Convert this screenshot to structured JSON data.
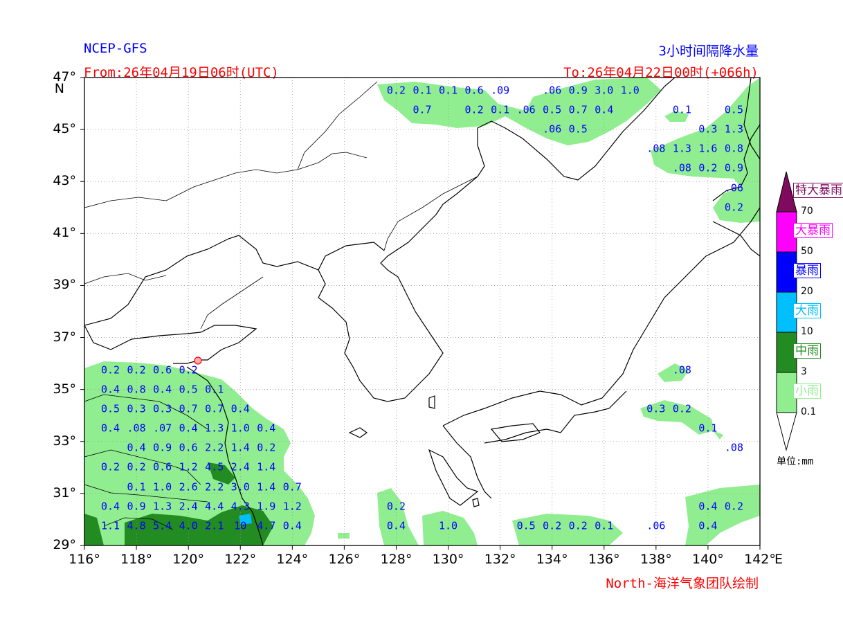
{
  "header": {
    "model": "NCEP-GFS",
    "title": "3小时间隔降水量",
    "from": "From:26年04月19日06时(UTC)",
    "to": "To:26年04月22日00时(+066h)",
    "credit": "North-海洋气象团队绘制"
  },
  "axes": {
    "lat_ticks": [
      "47°",
      "45°",
      "43°",
      "41°",
      "39°",
      "37°",
      "35°",
      "33°",
      "31°",
      "29°"
    ],
    "lat_unit": "N",
    "lon_ticks": [
      "116°",
      "118°",
      "120°",
      "122°",
      "124°",
      "126°",
      "128°",
      "130°",
      "132°",
      "134°",
      "136°",
      "138°",
      "140°",
      "142°"
    ],
    "lon_unit": "E"
  },
  "legend": {
    "categories": [
      {
        "label": "特大暴雨",
        "color": "#7f0a5e",
        "text_color": "#7f0a5e"
      },
      {
        "label": "大暴雨",
        "color": "#ff00ff",
        "text_color": "#ff00ff"
      },
      {
        "label": "暴雨",
        "color": "#0000ff",
        "text_color": "#0000ff"
      },
      {
        "label": "大雨",
        "color": "#00bfff",
        "text_color": "#00bfff"
      },
      {
        "label": "中雨",
        "color": "#228b22",
        "text_color": "#228b22"
      },
      {
        "label": "小雨",
        "color": "#90ee90",
        "text_color": "#90ee90"
      }
    ],
    "thresholds": [
      "70",
      "50",
      "20",
      "10",
      "3",
      "0.1"
    ],
    "unit": "单位:mm"
  },
  "precip_labels": [
    {
      "text": "0.2",
      "lon": 128.0,
      "lat": 46.5
    },
    {
      "text": "0.1",
      "lon": 129.0,
      "lat": 46.5
    },
    {
      "text": "0.1",
      "lon": 130.0,
      "lat": 46.5
    },
    {
      "text": "0.6",
      "lon": 131.0,
      "lat": 46.5
    },
    {
      "text": ".09",
      "lon": 132.0,
      "lat": 46.5
    },
    {
      "text": ".06",
      "lon": 134.0,
      "lat": 46.5
    },
    {
      "text": "0.9",
      "lon": 135.0,
      "lat": 46.5
    },
    {
      "text": "3.0",
      "lon": 136.0,
      "lat": 46.5
    },
    {
      "text": "1.0",
      "lon": 137.0,
      "lat": 46.5
    },
    {
      "text": "0.7",
      "lon": 129.0,
      "lat": 45.75
    },
    {
      "text": "0.2",
      "lon": 131.0,
      "lat": 45.75
    },
    {
      "text": "0.1",
      "lon": 132.0,
      "lat": 45.75
    },
    {
      "text": ".06",
      "lon": 133.0,
      "lat": 45.75
    },
    {
      "text": "0.5",
      "lon": 134.0,
      "lat": 45.75
    },
    {
      "text": "0.7",
      "lon": 135.0,
      "lat": 45.75
    },
    {
      "text": "0.4",
      "lon": 136.0,
      "lat": 45.75
    },
    {
      "text": "0.1",
      "lon": 139.0,
      "lat": 45.75
    },
    {
      "text": "0.5",
      "lon": 141.0,
      "lat": 45.75
    },
    {
      "text": ".06",
      "lon": 134.0,
      "lat": 45.0
    },
    {
      "text": "0.5",
      "lon": 135.0,
      "lat": 45.0
    },
    {
      "text": "0.3",
      "lon": 140.0,
      "lat": 45.0
    },
    {
      "text": "1.3",
      "lon": 141.0,
      "lat": 45.0
    },
    {
      "text": ".08",
      "lon": 138.0,
      "lat": 44.25
    },
    {
      "text": "1.3",
      "lon": 139.0,
      "lat": 44.25
    },
    {
      "text": "1.6",
      "lon": 140.0,
      "lat": 44.25
    },
    {
      "text": "0.8",
      "lon": 141.0,
      "lat": 44.25
    },
    {
      "text": ".08",
      "lon": 139.0,
      "lat": 43.5
    },
    {
      "text": "0.2",
      "lon": 140.0,
      "lat": 43.5
    },
    {
      "text": "0.9",
      "lon": 141.0,
      "lat": 43.5
    },
    {
      "text": ".06",
      "lon": 141.0,
      "lat": 42.75
    },
    {
      "text": "0.2",
      "lon": 141.0,
      "lat": 42.0
    },
    {
      "text": "0.2",
      "lon": 117.0,
      "lat": 35.75
    },
    {
      "text": "0.2",
      "lon": 118.0,
      "lat": 35.75
    },
    {
      "text": "0.6",
      "lon": 119.0,
      "lat": 35.75
    },
    {
      "text": "0.2",
      "lon": 120.0,
      "lat": 35.75
    },
    {
      "text": "0.4",
      "lon": 117.0,
      "lat": 35.0
    },
    {
      "text": "0.8",
      "lon": 118.0,
      "lat": 35.0
    },
    {
      "text": "0.4",
      "lon": 119.0,
      "lat": 35.0
    },
    {
      "text": "0.5",
      "lon": 120.0,
      "lat": 35.0
    },
    {
      "text": "0.1",
      "lon": 121.0,
      "lat": 35.0
    },
    {
      "text": "0.5",
      "lon": 117.0,
      "lat": 34.25
    },
    {
      "text": "0.3",
      "lon": 118.0,
      "lat": 34.25
    },
    {
      "text": "0.3",
      "lon": 119.0,
      "lat": 34.25
    },
    {
      "text": "0.7",
      "lon": 120.0,
      "lat": 34.25
    },
    {
      "text": "0.7",
      "lon": 121.0,
      "lat": 34.25
    },
    {
      "text": "0.4",
      "lon": 122.0,
      "lat": 34.25
    },
    {
      "text": "0.4",
      "lon": 117.0,
      "lat": 33.5
    },
    {
      "text": ".08",
      "lon": 118.0,
      "lat": 33.5
    },
    {
      "text": ".07",
      "lon": 119.0,
      "lat": 33.5
    },
    {
      "text": "0.4",
      "lon": 120.0,
      "lat": 33.5
    },
    {
      "text": "1.3",
      "lon": 121.0,
      "lat": 33.5
    },
    {
      "text": "1.0",
      "lon": 122.0,
      "lat": 33.5
    },
    {
      "text": "0.4",
      "lon": 123.0,
      "lat": 33.5
    },
    {
      "text": "0.4",
      "lon": 118.0,
      "lat": 32.75
    },
    {
      "text": "0.9",
      "lon": 119.0,
      "lat": 32.75
    },
    {
      "text": "0.6",
      "lon": 120.0,
      "lat": 32.75
    },
    {
      "text": "2.2",
      "lon": 121.0,
      "lat": 32.75
    },
    {
      "text": "1.4",
      "lon": 122.0,
      "lat": 32.75
    },
    {
      "text": "0.2",
      "lon": 123.0,
      "lat": 32.75
    },
    {
      "text": "0.2",
      "lon": 117.0,
      "lat": 32.0
    },
    {
      "text": "0.2",
      "lon": 118.0,
      "lat": 32.0
    },
    {
      "text": "0.6",
      "lon": 119.0,
      "lat": 32.0
    },
    {
      "text": "1.2",
      "lon": 120.0,
      "lat": 32.0
    },
    {
      "text": "4.5",
      "lon": 121.0,
      "lat": 32.0
    },
    {
      "text": "2.4",
      "lon": 122.0,
      "lat": 32.0
    },
    {
      "text": "1.4",
      "lon": 123.0,
      "lat": 32.0
    },
    {
      "text": "0.1",
      "lon": 118.0,
      "lat": 31.25
    },
    {
      "text": "1.0",
      "lon": 119.0,
      "lat": 31.25
    },
    {
      "text": "2.6",
      "lon": 120.0,
      "lat": 31.25
    },
    {
      "text": "2.2",
      "lon": 121.0,
      "lat": 31.25
    },
    {
      "text": "3.0",
      "lon": 122.0,
      "lat": 31.25
    },
    {
      "text": "1.4",
      "lon": 123.0,
      "lat": 31.25
    },
    {
      "text": "0.7",
      "lon": 124.0,
      "lat": 31.25
    },
    {
      "text": "0.4",
      "lon": 117.0,
      "lat": 30.5
    },
    {
      "text": "0.9",
      "lon": 118.0,
      "lat": 30.5
    },
    {
      "text": "1.3",
      "lon": 119.0,
      "lat": 30.5
    },
    {
      "text": "2.4",
      "lon": 120.0,
      "lat": 30.5
    },
    {
      "text": "4.4",
      "lon": 121.0,
      "lat": 30.5
    },
    {
      "text": "4.3",
      "lon": 122.0,
      "lat": 30.5
    },
    {
      "text": "1.9",
      "lon": 123.0,
      "lat": 30.5
    },
    {
      "text": "1.2",
      "lon": 124.0,
      "lat": 30.5
    },
    {
      "text": "1.1",
      "lon": 117.0,
      "lat": 29.75
    },
    {
      "text": "4.8",
      "lon": 118.0,
      "lat": 29.75
    },
    {
      "text": "5.4",
      "lon": 119.0,
      "lat": 29.75
    },
    {
      "text": "4.0",
      "lon": 120.0,
      "lat": 29.75
    },
    {
      "text": "2.1",
      "lon": 121.0,
      "lat": 29.75
    },
    {
      "text": "10",
      "lon": 122.0,
      "lat": 29.75
    },
    {
      "text": "4.7",
      "lon": 123.0,
      "lat": 29.75
    },
    {
      "text": "0.4",
      "lon": 124.0,
      "lat": 29.75
    },
    {
      "text": ".08",
      "lon": 139.0,
      "lat": 35.75
    },
    {
      "text": "0.3",
      "lon": 138.0,
      "lat": 34.25
    },
    {
      "text": "0.2",
      "lon": 139.0,
      "lat": 34.25
    },
    {
      "text": "0.1",
      "lon": 140.0,
      "lat": 33.5
    },
    {
      "text": ".08",
      "lon": 141.0,
      "lat": 32.75
    },
    {
      "text": "0.2",
      "lon": 128.0,
      "lat": 30.5
    },
    {
      "text": "0.4",
      "lon": 128.0,
      "lat": 29.75
    },
    {
      "text": "1.0",
      "lon": 130.0,
      "lat": 29.75
    },
    {
      "text": "0.5",
      "lon": 133.0,
      "lat": 29.75
    },
    {
      "text": "0.2",
      "lon": 134.0,
      "lat": 29.75
    },
    {
      "text": "0.2",
      "lon": 135.0,
      "lat": 29.75
    },
    {
      "text": "0.1",
      "lon": 136.0,
      "lat": 29.75
    },
    {
      "text": ".06",
      "lon": 138.0,
      "lat": 29.75
    },
    {
      "text": "0.4",
      "lon": 140.0,
      "lat": 30.5
    },
    {
      "text": "0.2",
      "lon": 141.0,
      "lat": 30.5
    },
    {
      "text": "0.4",
      "lon": 140.0,
      "lat": 29.75
    }
  ]
}
